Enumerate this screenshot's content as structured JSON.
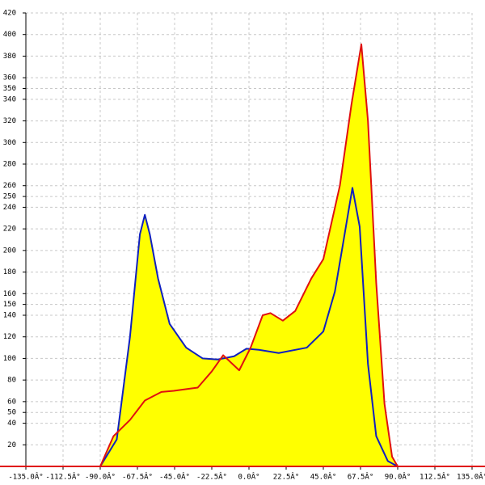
{
  "chart_data": {
    "type": "area",
    "xlim": [
      -135,
      135
    ],
    "ylim": [
      0,
      420
    ],
    "xticks": [
      {
        "value": -135,
        "label": "-135.0Â°"
      },
      {
        "value": -112.5,
        "label": "-112.5Â°"
      },
      {
        "value": -90,
        "label": "-90.0Â°"
      },
      {
        "value": -67.5,
        "label": "-67.5Â°"
      },
      {
        "value": -45,
        "label": "-45.0Â°"
      },
      {
        "value": -22.5,
        "label": "-22.5Â°"
      },
      {
        "value": 0,
        "label": "0.0Â°"
      },
      {
        "value": 22.5,
        "label": "22.5Â°"
      },
      {
        "value": 45,
        "label": "45.0Â°"
      },
      {
        "value": 67.5,
        "label": "67.5Â°"
      },
      {
        "value": 90,
        "label": "90.0Â°"
      },
      {
        "value": 112.5,
        "label": "112.5Â°"
      },
      {
        "value": 135,
        "label": "135.0Â°"
      }
    ],
    "yticks": [
      20,
      40,
      50,
      60,
      80,
      100,
      120,
      140,
      150,
      160,
      180,
      200,
      220,
      240,
      250,
      260,
      280,
      300,
      320,
      340,
      350,
      360,
      380,
      400,
      420
    ],
    "grid": true,
    "fill_color": "#ffff00",
    "series": [
      {
        "color": "#1020c0",
        "x": [
          -90,
          -80,
          -72,
          -66,
          -63,
          -60,
          -55,
          -48,
          -38,
          -28,
          -19,
          -9,
          -1.5,
          6,
          18,
          35,
          45,
          52,
          57,
          62.6,
          67,
          72,
          77,
          84,
          90
        ],
        "values": [
          0,
          25,
          120,
          215,
          233,
          215,
          174,
          132,
          110,
          100,
          99,
          102,
          109,
          108,
          105,
          110,
          125,
          162,
          207,
          258,
          222,
          95,
          28,
          5,
          0
        ]
      },
      {
        "color": "#e01010",
        "x": [
          -90,
          -82,
          -72,
          -63,
          -53,
          -45.5,
          -40.6,
          -31,
          -22.5,
          -15.6,
          -5.9,
          1,
          8.3,
          13,
          20.5,
          28,
          37.7,
          45,
          55,
          62,
          68,
          72,
          77,
          82,
          86.6,
          90
        ],
        "values": [
          0,
          28,
          43,
          61,
          69,
          70,
          71,
          73,
          88,
          103,
          89,
          110,
          140,
          142,
          135,
          144,
          174,
          192,
          260,
          335,
          391,
          320,
          170,
          58,
          9,
          0
        ]
      }
    ]
  }
}
